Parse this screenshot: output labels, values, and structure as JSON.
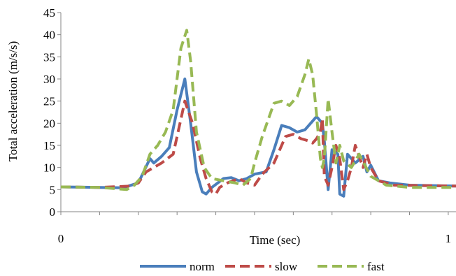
{
  "chart_data": {
    "type": "line",
    "title": "",
    "xlabel": "Time (sec)",
    "ylabel": "Total acceleration (m/s/s)",
    "xlim": [
      0,
      1.02
    ],
    "ylim": [
      0,
      45
    ],
    "x_tick_labels": [
      {
        "value": 0,
        "label": "0"
      },
      {
        "value": 1,
        "label": "1"
      }
    ],
    "x_minor_ticks": [
      0,
      0.1,
      0.2,
      0.3,
      0.4,
      0.5,
      0.6,
      0.7,
      0.8,
      0.9,
      1.0
    ],
    "y_ticks": [
      0,
      5,
      10,
      15,
      20,
      25,
      30,
      35,
      40,
      45
    ],
    "grid": false,
    "legend_position": "bottom",
    "series": [
      {
        "name": "norm",
        "color": "#4A7EBB",
        "style": "solid",
        "points": [
          [
            0,
            5.6
          ],
          [
            0.1,
            5.5
          ],
          [
            0.16,
            5.4
          ],
          [
            0.2,
            6.5
          ],
          [
            0.23,
            12
          ],
          [
            0.24,
            11
          ],
          [
            0.26,
            12.5
          ],
          [
            0.28,
            14.5
          ],
          [
            0.3,
            23
          ],
          [
            0.32,
            30
          ],
          [
            0.335,
            20
          ],
          [
            0.35,
            9
          ],
          [
            0.365,
            4.5
          ],
          [
            0.375,
            4
          ],
          [
            0.39,
            5.5
          ],
          [
            0.42,
            7.5
          ],
          [
            0.44,
            7.7
          ],
          [
            0.46,
            7
          ],
          [
            0.48,
            7.5
          ],
          [
            0.5,
            8.5
          ],
          [
            0.53,
            9
          ],
          [
            0.55,
            14
          ],
          [
            0.57,
            19.5
          ],
          [
            0.59,
            19
          ],
          [
            0.61,
            18
          ],
          [
            0.63,
            18.5
          ],
          [
            0.645,
            20
          ],
          [
            0.66,
            21.5
          ],
          [
            0.675,
            20
          ],
          [
            0.68,
            16
          ],
          [
            0.69,
            5
          ],
          [
            0.7,
            14
          ],
          [
            0.715,
            13
          ],
          [
            0.72,
            4
          ],
          [
            0.73,
            3.5
          ],
          [
            0.74,
            13
          ],
          [
            0.76,
            11
          ],
          [
            0.78,
            12.5
          ],
          [
            0.79,
            9
          ],
          [
            0.8,
            10.5
          ],
          [
            0.82,
            7
          ],
          [
            0.85,
            6.5
          ],
          [
            0.9,
            6
          ],
          [
            1.02,
            5.8
          ]
        ]
      },
      {
        "name": "slow",
        "color": "#BE4B48",
        "style": "dash",
        "points": [
          [
            0,
            5.6
          ],
          [
            0.1,
            5.5
          ],
          [
            0.18,
            5.8
          ],
          [
            0.2,
            6.5
          ],
          [
            0.22,
            9
          ],
          [
            0.26,
            11
          ],
          [
            0.29,
            13
          ],
          [
            0.3,
            17
          ],
          [
            0.32,
            25
          ],
          [
            0.34,
            20
          ],
          [
            0.36,
            12
          ],
          [
            0.375,
            7.5
          ],
          [
            0.39,
            4.5
          ],
          [
            0.4,
            4
          ],
          [
            0.41,
            5.5
          ],
          [
            0.43,
            6.5
          ],
          [
            0.46,
            7.5
          ],
          [
            0.48,
            6.5
          ],
          [
            0.5,
            6
          ],
          [
            0.52,
            8.5
          ],
          [
            0.55,
            11
          ],
          [
            0.58,
            17
          ],
          [
            0.6,
            17.5
          ],
          [
            0.62,
            16.5
          ],
          [
            0.64,
            16
          ],
          [
            0.65,
            15.5
          ],
          [
            0.66,
            16.5
          ],
          [
            0.67,
            18
          ],
          [
            0.675,
            21
          ],
          [
            0.68,
            8
          ],
          [
            0.69,
            6
          ],
          [
            0.7,
            10
          ],
          [
            0.71,
            15
          ],
          [
            0.72,
            12
          ],
          [
            0.73,
            5
          ],
          [
            0.74,
            7
          ],
          [
            0.75,
            10
          ],
          [
            0.76,
            15
          ],
          [
            0.78,
            10
          ],
          [
            0.79,
            13
          ],
          [
            0.8,
            10
          ],
          [
            0.82,
            7
          ],
          [
            0.86,
            6
          ],
          [
            1.02,
            5.8
          ]
        ]
      },
      {
        "name": "fast",
        "color": "#98B954",
        "style": "dash",
        "points": [
          [
            0,
            5.6
          ],
          [
            0.1,
            5.5
          ],
          [
            0.17,
            5
          ],
          [
            0.19,
            6
          ],
          [
            0.21,
            8
          ],
          [
            0.23,
            13
          ],
          [
            0.25,
            15
          ],
          [
            0.27,
            18
          ],
          [
            0.29,
            23
          ],
          [
            0.31,
            37
          ],
          [
            0.325,
            41
          ],
          [
            0.335,
            34
          ],
          [
            0.35,
            18
          ],
          [
            0.37,
            10
          ],
          [
            0.39,
            7.5
          ],
          [
            0.42,
            7
          ],
          [
            0.45,
            6.5
          ],
          [
            0.47,
            6
          ],
          [
            0.49,
            7.5
          ],
          [
            0.5,
            11
          ],
          [
            0.52,
            17
          ],
          [
            0.55,
            24.5
          ],
          [
            0.57,
            25
          ],
          [
            0.59,
            24
          ],
          [
            0.61,
            26
          ],
          [
            0.63,
            31
          ],
          [
            0.64,
            34.5
          ],
          [
            0.65,
            31
          ],
          [
            0.66,
            22
          ],
          [
            0.67,
            12
          ],
          [
            0.675,
            10
          ],
          [
            0.68,
            12
          ],
          [
            0.69,
            25.5
          ],
          [
            0.7,
            18
          ],
          [
            0.71,
            11
          ],
          [
            0.72,
            15
          ],
          [
            0.73,
            11.5
          ],
          [
            0.75,
            10
          ],
          [
            0.77,
            13
          ],
          [
            0.8,
            8
          ],
          [
            0.84,
            6
          ],
          [
            0.9,
            5.5
          ],
          [
            1.02,
            5.5
          ]
        ]
      }
    ]
  }
}
